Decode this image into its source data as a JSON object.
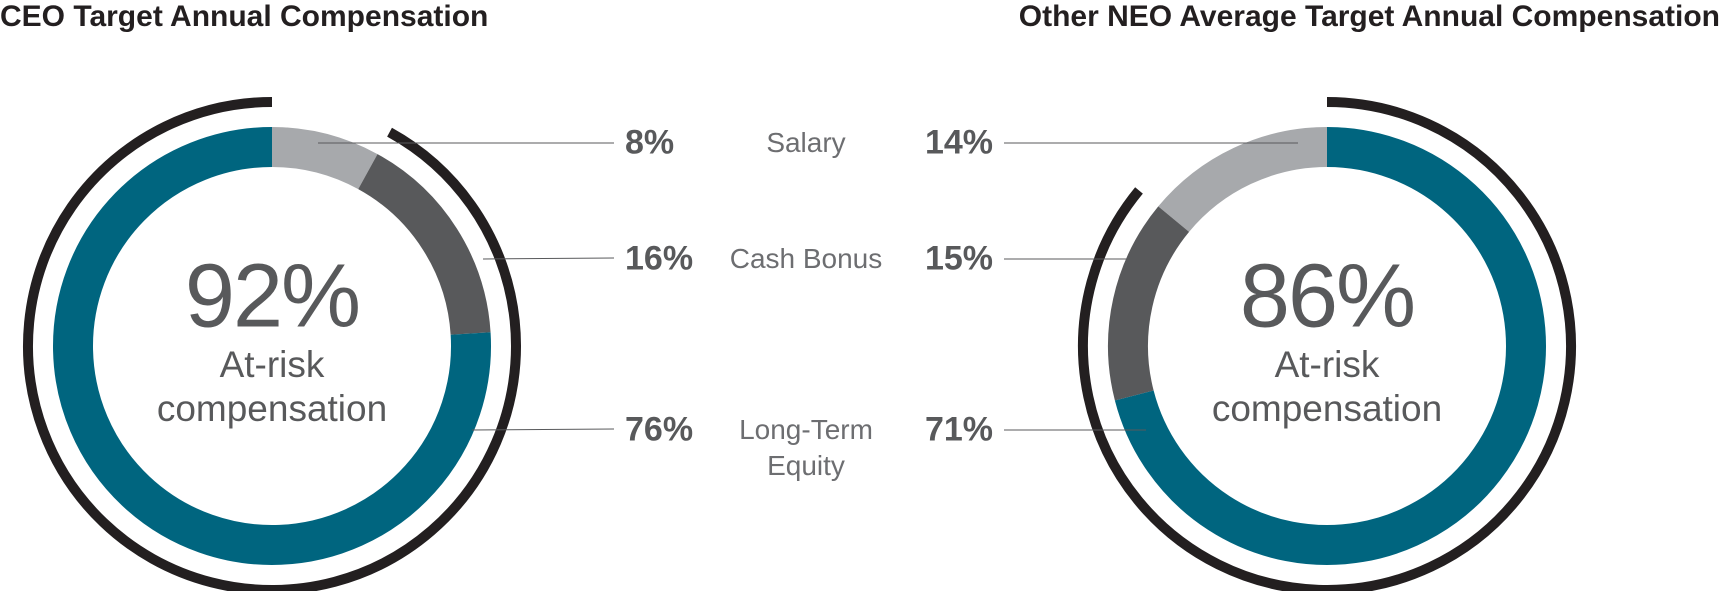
{
  "chart_data": {
    "type": "donut",
    "categories": [
      "Salary",
      "Cash Bonus",
      "Long-Term Equity"
    ],
    "colors": [
      "#a7a9ac",
      "#58595b",
      "#00657f"
    ],
    "center_text": "At-risk compensation",
    "at_risk_color": "#231f20",
    "series": [
      {
        "name": "CEO Target Annual Compensation",
        "values": [
          8,
          16,
          76
        ],
        "value_labels": [
          "8%",
          "16%",
          "76%"
        ],
        "at_risk": {
          "value": 92,
          "label": "92%"
        }
      },
      {
        "name": "Other NEO Average Target Annual Compensation",
        "values": [
          14,
          15,
          71
        ],
        "value_labels": [
          "14%",
          "15%",
          "71%"
        ],
        "at_risk": {
          "value": 86,
          "label": "86%"
        }
      }
    ]
  }
}
